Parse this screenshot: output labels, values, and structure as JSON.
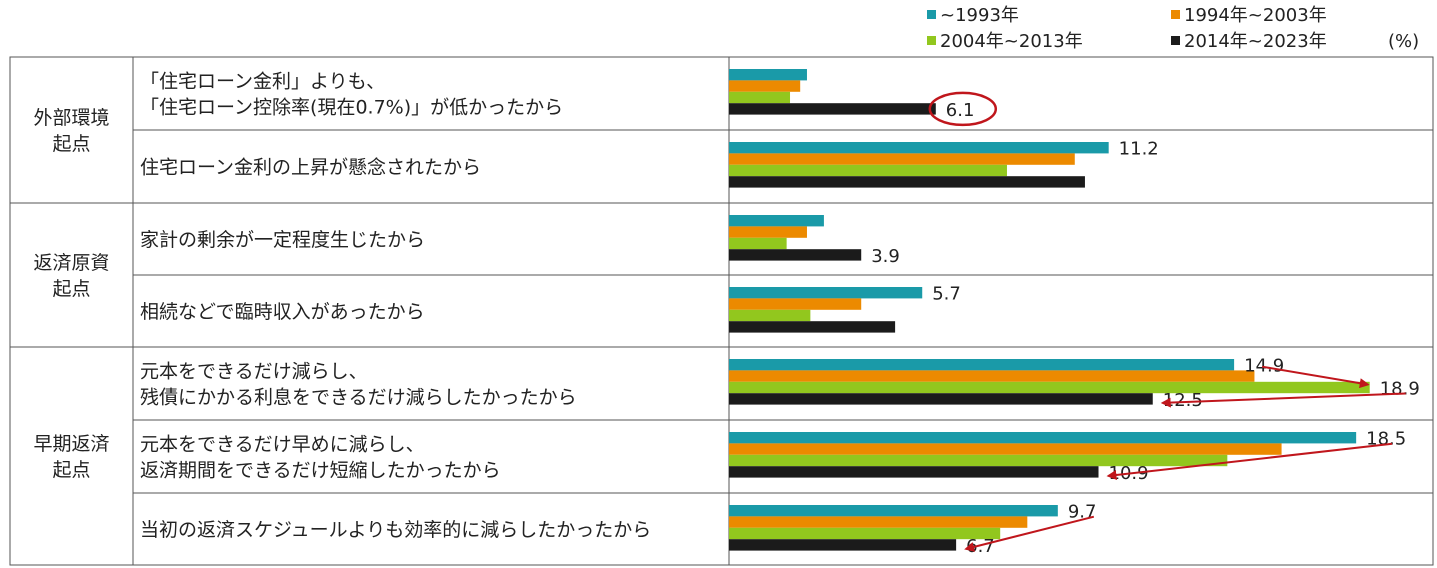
{
  "legend_unit": "(%)",
  "chart_data": {
    "type": "bar",
    "orientation": "horizontal",
    "xlim": [
      0,
      20
    ],
    "grid": false,
    "legend_position": "top-right",
    "series": [
      {
        "name": "~1993年",
        "color": "#1a9aa8",
        "values": [
          2.3,
          11.2,
          2.8,
          5.7,
          14.9,
          18.5,
          9.7
        ]
      },
      {
        "name": "1994年~2003年",
        "color": "#ec8a00",
        "values": [
          2.1,
          10.2,
          2.3,
          3.9,
          15.5,
          16.3,
          8.8
        ]
      },
      {
        "name": "2004年~2013年",
        "color": "#92c71e",
        "values": [
          1.8,
          8.2,
          1.7,
          2.4,
          18.9,
          14.7,
          8.0
        ]
      },
      {
        "name": "2014年~2023年",
        "color": "#1b1b1b",
        "values": [
          6.1,
          10.5,
          3.9,
          4.9,
          12.5,
          10.9,
          6.7
        ]
      }
    ],
    "groups": [
      {
        "label_lines": [
          "外部環境",
          "起点"
        ],
        "count": 2
      },
      {
        "label_lines": [
          "返済原資",
          "起点"
        ],
        "count": 2
      },
      {
        "label_lines": [
          "早期返済",
          "起点"
        ],
        "count": 3
      }
    ],
    "categories": [
      [
        "「住宅ローン金利」よりも、",
        "「住宅ローン控除率(現在0.7%)」が低かったから"
      ],
      [
        "住宅ローン金利の上昇が懸念されたから"
      ],
      [
        "家計の剰余が一定程度生じたから"
      ],
      [
        "相続などで臨時収入があったから"
      ],
      [
        "元本をできるだけ減らし、",
        "残債にかかる利息をできるだけ減らしたかったから"
      ],
      [
        "元本をできるだけ早めに減らし、",
        "返済期間をできるだけ短縮したかったから"
      ],
      [
        "当初の返済スケジュールよりも効率的に減らしたかったから"
      ]
    ],
    "data_labels": [
      {
        "row": 0,
        "series": 3,
        "text": "6.1"
      },
      {
        "row": 1,
        "series": 0,
        "text": "11.2"
      },
      {
        "row": 2,
        "series": 3,
        "text": "3.9"
      },
      {
        "row": 3,
        "series": 0,
        "text": "5.7"
      },
      {
        "row": 4,
        "series": 0,
        "text": "14.9"
      },
      {
        "row": 4,
        "series": 2,
        "text": "18.9"
      },
      {
        "row": 4,
        "series": 3,
        "text": "12.5"
      },
      {
        "row": 5,
        "series": 0,
        "text": "18.5"
      },
      {
        "row": 5,
        "series": 3,
        "text": "10.9"
      },
      {
        "row": 6,
        "series": 0,
        "text": "9.7"
      },
      {
        "row": 6,
        "series": 3,
        "text": "6.7"
      }
    ],
    "highlight": {
      "row": 0,
      "series": 3,
      "shape": "ellipse",
      "color": "#c0161c"
    },
    "arrows": [
      {
        "from": {
          "row": 4,
          "series": 0
        },
        "to": {
          "row": 4,
          "series": 2
        },
        "color": "#c0161c"
      },
      {
        "from": {
          "row": 4,
          "series": 2
        },
        "to": {
          "row": 4,
          "series": 3
        },
        "color": "#c0161c"
      },
      {
        "from": {
          "row": 5,
          "series": 0
        },
        "to": {
          "row": 5,
          "series": 3
        },
        "color": "#c0161c"
      },
      {
        "from": {
          "row": 6,
          "series": 0
        },
        "to": {
          "row": 6,
          "series": 3
        },
        "color": "#c0161c"
      }
    ]
  }
}
